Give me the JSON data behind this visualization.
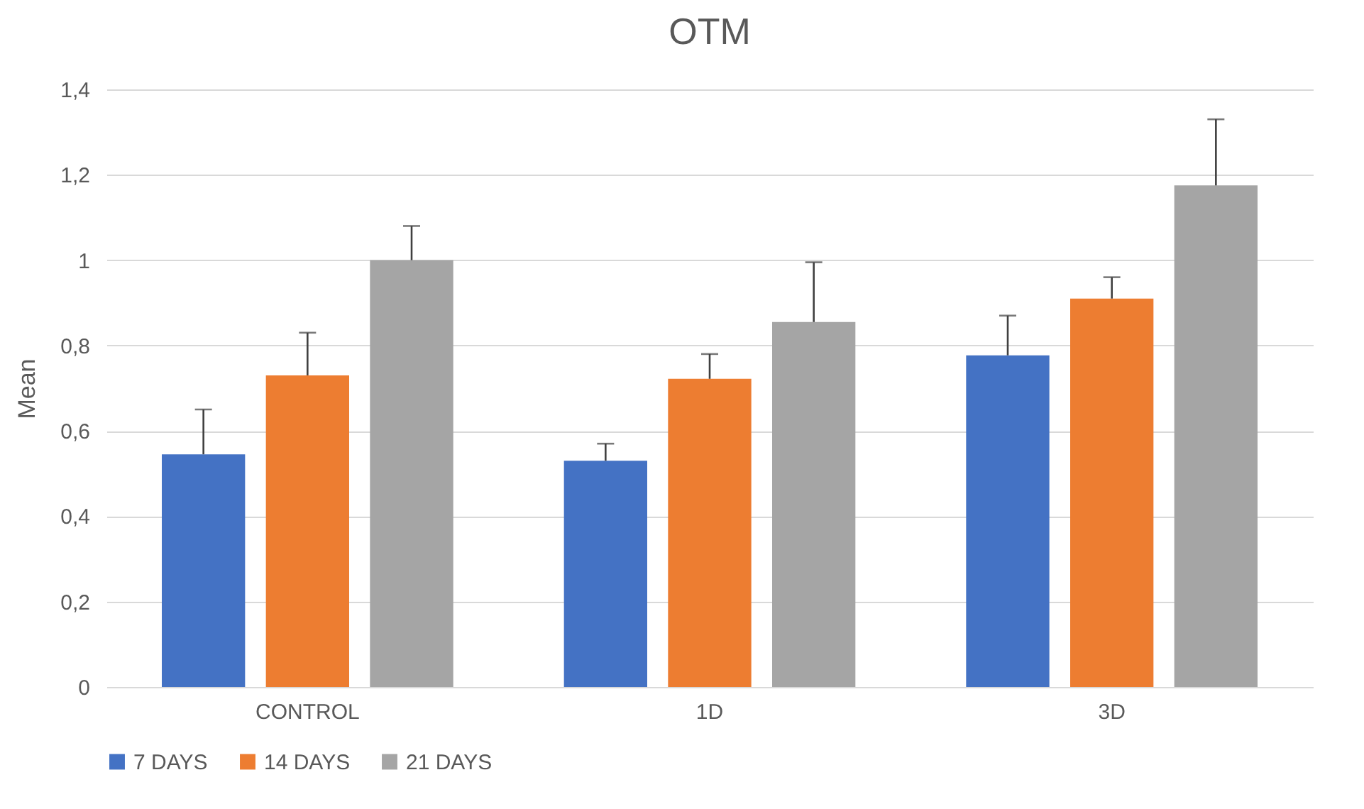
{
  "chart_data": {
    "type": "bar",
    "title": "OTM",
    "ylabel": "Mean",
    "categories": [
      "CONTROL",
      "1D",
      "3D"
    ],
    "series": [
      {
        "name": "7 DAYS",
        "color": "#4472c4",
        "values": [
          0.545,
          0.53,
          0.777
        ],
        "errors": [
          [
            0.545,
            0.65
          ],
          [
            0.53,
            0.57
          ],
          [
            0.777,
            0.87
          ]
        ]
      },
      {
        "name": "14 DAYS",
        "color": "#ed7d31",
        "values": [
          0.73,
          0.722,
          0.91
        ],
        "errors": [
          [
            0.73,
            0.83
          ],
          [
            0.722,
            0.78
          ],
          [
            0.91,
            0.96
          ]
        ]
      },
      {
        "name": "21 DAYS",
        "color": "#a5a5a5",
        "values": [
          1.0,
          0.855,
          1.175
        ],
        "errors": [
          [
            1.0,
            1.08
          ],
          [
            0.855,
            0.995
          ],
          [
            1.175,
            1.33
          ]
        ]
      }
    ],
    "ylim": [
      0,
      1.4
    ],
    "yticks": [
      {
        "value": 0,
        "label": "0"
      },
      {
        "value": 0.2,
        "label": "0,2"
      },
      {
        "value": 0.4,
        "label": "0,4"
      },
      {
        "value": 0.6,
        "label": "0,6"
      },
      {
        "value": 0.8,
        "label": "0,8"
      },
      {
        "value": 1,
        "label": "1"
      },
      {
        "value": 1.2,
        "label": "1,2"
      },
      {
        "value": 1.4,
        "label": "1,4"
      }
    ],
    "grid": "y",
    "legend": "bottom"
  }
}
